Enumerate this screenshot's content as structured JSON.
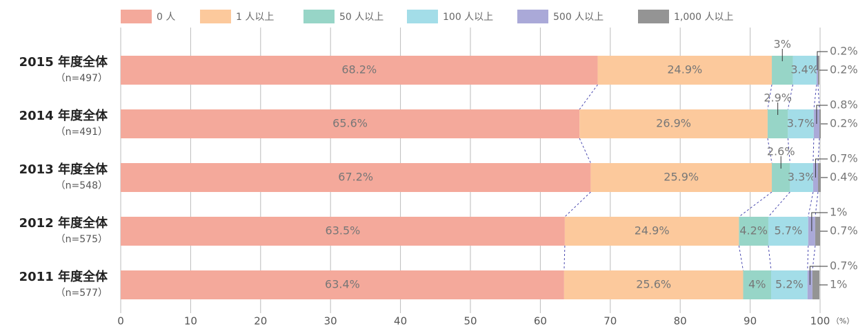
{
  "chart_data": {
    "type": "stacked_barh",
    "categories": [
      "2015 年度全体",
      "2014 年度全体",
      "2013 年度全体",
      "2012 年度全体",
      "2011 年度全体"
    ],
    "sample_labels": [
      "（n=497）",
      "（n=491）",
      "（n=548）",
      "（n=575）",
      "（n=577）"
    ],
    "series": [
      {
        "name": "0 人",
        "color": "#f4a99b",
        "values": [
          68.2,
          65.6,
          67.2,
          63.5,
          63.4
        ],
        "value_labels": [
          "68.2%",
          "65.6%",
          "67.2%",
          "63.5%",
          "63.4%"
        ]
      },
      {
        "name": "1 人以上",
        "color": "#fcc99c",
        "values": [
          24.9,
          26.9,
          25.9,
          24.9,
          25.6
        ],
        "value_labels": [
          "24.9%",
          "26.9%",
          "25.9%",
          "24.9%",
          "25.6%"
        ]
      },
      {
        "name": "50 人以上",
        "color": "#97d5c7",
        "values": [
          3,
          2.9,
          2.6,
          4.2,
          4
        ],
        "value_labels": [
          "3%",
          "2.9%",
          "2.6%",
          "4.2%",
          "4%"
        ]
      },
      {
        "name": "100 人以上",
        "color": "#a3dde8",
        "values": [
          3.4,
          3.7,
          3.3,
          5.7,
          5.2
        ],
        "value_labels": [
          "3.4%",
          "3.7%",
          "3.3%",
          "5.7%",
          "5.2%"
        ]
      },
      {
        "name": "500 人以上",
        "color": "#aaa9d8",
        "values": [
          0.2,
          0.8,
          0.7,
          1,
          0.7
        ],
        "value_labels": [
          "0.2%",
          "0.8%",
          "0.7%",
          "1%",
          "0.7%"
        ]
      },
      {
        "name": "1,000 人以上",
        "color": "#949494",
        "values": [
          0.2,
          0.2,
          0.4,
          0.7,
          1
        ],
        "value_labels": [
          "0.2%",
          "0.2%",
          "0.4%",
          "0.7%",
          "1%"
        ]
      }
    ],
    "xlim": [
      0,
      100
    ],
    "xticks": [
      0,
      10,
      20,
      30,
      40,
      50,
      60,
      70,
      80,
      90,
      100
    ],
    "xunit": "（%）",
    "grid": true
  }
}
